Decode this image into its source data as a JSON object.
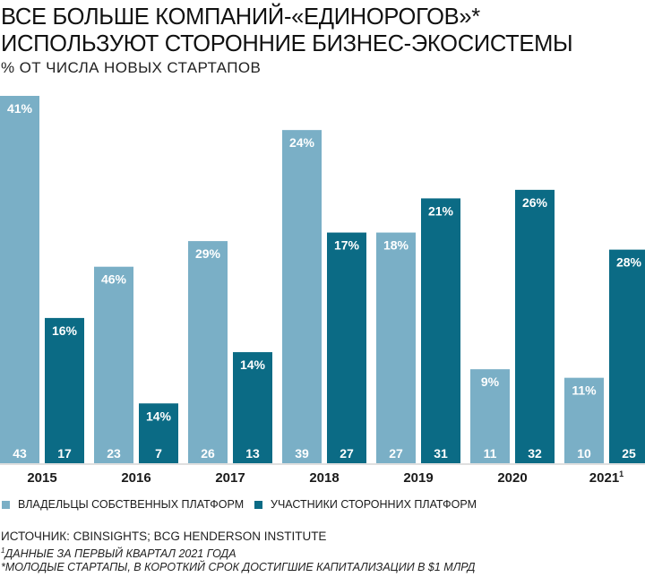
{
  "title_lines": [
    "ВСЕ БОЛЬШЕ КОМПАНИЙ-«ЕДИНОРОГОВ»*",
    "ИСПОЛЬЗУЮТ СТОРОННИЕ БИЗНЕС-ЭКОСИСТЕМЫ"
  ],
  "subtitle": "% ОТ ЧИСЛА НОВЫХ СТАРТАПОВ",
  "source": "ИСТОЧНИК: CBINSIGHTS; BCG HENDERSON INSTITUTE",
  "footnote1_mark": "1",
  "footnote1": "ДАННЫЕ ЗА ПЕРВЫЙ КВАРТАЛ 2021 ГОДА",
  "footnote2": "*МОЛОДЫЕ СТАРТАПЫ, В КОРОТКИЙ СРОК ДОСТИГШИЕ КАПИТАЛИЗАЦИИ В $1 МЛРД",
  "colors": {
    "own": "#7aafc6",
    "third": "#0b6b85",
    "text_on_bar": "#ffffff"
  },
  "chart_data": {
    "type": "bar",
    "categories": [
      "2015",
      "2016",
      "2017",
      "2018",
      "2019",
      "2020",
      "2021"
    ],
    "category_superscripts": [
      "",
      "",
      "",
      "",
      "",
      "",
      "1"
    ],
    "series": [
      {
        "name": "ВЛАДЕЛЬЦЫ СОБСТВЕННЫХ ПЛАТФОРМ",
        "color": "#7aafc6",
        "counts": [
          43,
          23,
          26,
          39,
          27,
          11,
          10
        ],
        "percent_labels": [
          "41%",
          "46%",
          "29%",
          "24%",
          "18%",
          "9%",
          "11%"
        ]
      },
      {
        "name": "УЧАСТНИКИ СТОРОННИХ ПЛАТФОРМ",
        "color": "#0b6b85",
        "counts": [
          17,
          7,
          13,
          27,
          31,
          32,
          25
        ],
        "percent_labels": [
          "16%",
          "14%",
          "14%",
          "17%",
          "21%",
          "26%",
          "28%"
        ]
      }
    ],
    "ylim": [
      0,
      43
    ],
    "legend_position": "bottom",
    "grid": false
  }
}
